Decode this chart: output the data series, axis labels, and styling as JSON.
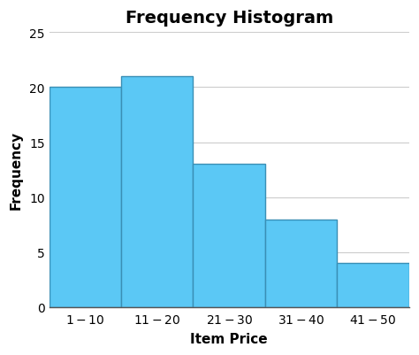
{
  "title": "Frequency Histogram",
  "xlabel": "Item Price",
  "ylabel": "Frequency",
  "categories": [
    "$1-$10",
    "$11-$20",
    "$21-$30",
    "$31-$40",
    "$41-$50"
  ],
  "values": [
    20,
    21,
    13,
    8,
    4
  ],
  "bar_color": "#5BC8F5",
  "bar_edge_color": "#3A8FB5",
  "ylim": [
    0,
    25
  ],
  "yticks": [
    0,
    5,
    10,
    15,
    20,
    25
  ],
  "title_fontsize": 14,
  "title_fontweight": "bold",
  "axis_label_fontsize": 11,
  "axis_label_fontweight": "bold",
  "tick_fontsize": 10,
  "background_color": "#ffffff",
  "grid_color": "#cccccc"
}
